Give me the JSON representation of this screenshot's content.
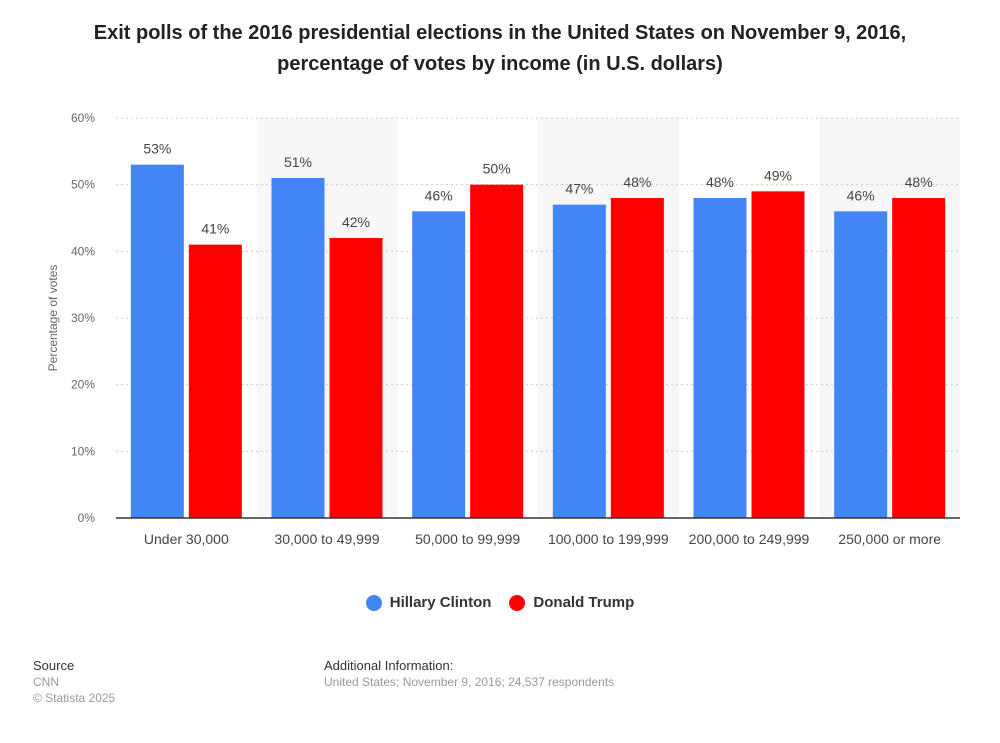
{
  "title_line1": "Exit polls of the 2016 presidential elections in the United States on November 9, 2016,",
  "title_line2": "percentage of votes by income (in U.S. dollars)",
  "chart_data": {
    "type": "bar",
    "categories": [
      "Under 30,000",
      "30,000 to 49,999",
      "50,000 to 99,999",
      "100,000 to 199,999",
      "200,000 to 249,999",
      "250,000 or more"
    ],
    "series": [
      {
        "name": "Hillary Clinton",
        "color": "#4285f4",
        "values": [
          53,
          51,
          46,
          47,
          48,
          46
        ]
      },
      {
        "name": "Donald Trump",
        "color": "#ff0000",
        "values": [
          41,
          42,
          50,
          48,
          49,
          48
        ]
      }
    ],
    "ylabel": "Percentage of votes",
    "ylim": [
      0,
      60
    ],
    "yticks": [
      "0%",
      "10%",
      "20%",
      "30%",
      "40%",
      "50%",
      "60%"
    ],
    "value_suffix": "%",
    "grid": true,
    "legend_position": "bottom"
  },
  "footer": {
    "source_label": "Source",
    "source_name": "CNN",
    "copyright": "© Statista 2025",
    "info_label": "Additional Information:",
    "info_text": "United States; November 9, 2016; 24,537 respondents"
  }
}
